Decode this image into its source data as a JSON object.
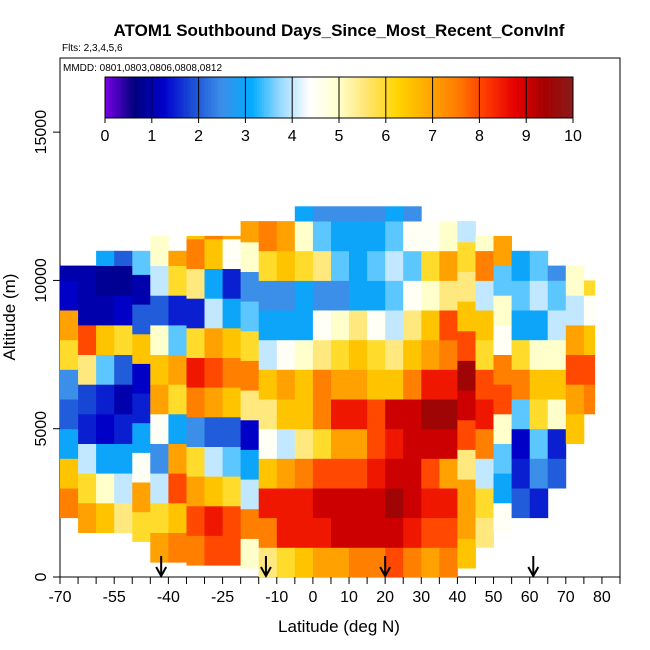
{
  "chart_data": {
    "type": "heatmap",
    "title": "ATOM1 Southbound Days_Since_Most_Recent_ConvInf",
    "flights_label": "Flts: 2,3,4,5,6",
    "dates_label": "MMDD: 0801,0803,0806,0808,0812",
    "xlabel": "Latitude (deg N)",
    "ylabel": "Altitude (m)",
    "xlim": [
      -70,
      85
    ],
    "ylim": [
      0,
      17500
    ],
    "x_ticks": [
      -70,
      -55,
      -40,
      -25,
      -10,
      0,
      10,
      20,
      30,
      40,
      50,
      60,
      70,
      80
    ],
    "y_ticks": [
      0,
      5000,
      10000,
      15000
    ],
    "colorbar": {
      "min": 0,
      "max": 10,
      "ticks": [
        0,
        1,
        2,
        3,
        4,
        5,
        6,
        7,
        8,
        9,
        10
      ],
      "colors": [
        "#7a00e6",
        "#00007d",
        "#0000cc",
        "#1a4fd6",
        "#3b8fe8",
        "#00aaff",
        "#99d9ff",
        "#ffffff",
        "#ffffcc",
        "#ffe36b",
        "#ffd500",
        "#ffaa00",
        "#ff7f00",
        "#ff3a00",
        "#e60000",
        "#a50000",
        "#8b1a1a"
      ]
    },
    "arrows_lat": [
      -42,
      -13,
      20,
      61
    ],
    "profile_columns": [
      {
        "x0": -70,
        "x1": -65,
        "alt_min": 2000,
        "alt_max": 10500,
        "values": [
          7.5,
          6.5,
          3.0,
          2.0,
          2.5,
          6.0,
          7.0,
          1.2,
          1.0,
          4.5,
          7.5
        ]
      },
      {
        "x0": -65,
        "x1": -60,
        "alt_min": 1500,
        "alt_max": 10500,
        "values": [
          7.0,
          6.0,
          4.0,
          1.5,
          1.8,
          5.5,
          8.0,
          1.0,
          1.0,
          2.5,
          4.0
        ]
      },
      {
        "x0": -60,
        "x1": -55,
        "alt_min": 1500,
        "alt_max": 11000,
        "values": [
          6.5,
          5.0,
          3.0,
          1.2,
          1.5,
          3.5,
          6.5,
          1.0,
          0.8,
          3.0,
          6.0,
          8.0
        ]
      },
      {
        "x0": -55,
        "x1": -50,
        "alt_min": 1500,
        "alt_max": 11000,
        "values": [
          5.5,
          4.0,
          3.0,
          1.5,
          1.0,
          2.0,
          6.0,
          1.2,
          0.8,
          2.0,
          5.0,
          7.5
        ]
      },
      {
        "x0": -50,
        "x1": -45,
        "alt_min": 1200,
        "alt_max": 11000,
        "values": [
          6.0,
          7.0,
          4.5,
          3.0,
          1.5,
          1.2,
          6.5,
          2.0,
          1.0,
          3.5,
          5.5,
          8.0
        ]
      },
      {
        "x0": -45,
        "x1": -40,
        "alt_min": 500,
        "alt_max": 11500,
        "values": [
          7.0,
          6.0,
          4.0,
          2.5,
          4.5,
          7.0,
          6.5,
          5.0,
          2.0,
          4.0,
          5.0,
          7.5
        ]
      },
      {
        "x0": -40,
        "x1": -35,
        "alt_min": 500,
        "alt_max": 11000,
        "values": [
          7.5,
          6.5,
          8.0,
          7.0,
          3.0,
          6.0,
          7.0,
          3.5,
          1.5,
          6.0,
          7.0
        ]
      },
      {
        "x0": -35,
        "x1": -30,
        "alt_min": 400,
        "alt_max": 11500,
        "values": [
          7.5,
          8.0,
          7.0,
          6.0,
          2.5,
          7.5,
          8.5,
          6.0,
          1.5,
          5.5,
          7.5,
          6.5
        ]
      },
      {
        "x0": -30,
        "x1": -25,
        "alt_min": 400,
        "alt_max": 11500,
        "values": [
          8.0,
          8.5,
          6.5,
          4.0,
          2.0,
          7.0,
          8.0,
          7.0,
          4.0,
          3.0,
          6.5,
          7.5
        ]
      },
      {
        "x0": -25,
        "x1": -20,
        "alt_min": 400,
        "alt_max": 11500,
        "values": [
          8.0,
          8.0,
          6.0,
          3.5,
          2.0,
          6.5,
          7.5,
          6.5,
          3.0,
          1.5,
          4.5,
          7.0
        ]
      },
      {
        "x0": -20,
        "x1": -15,
        "alt_min": 300,
        "alt_max": 12000,
        "values": [
          5.0,
          7.5,
          4.0,
          3.0,
          1.2,
          5.5,
          7.5,
          6.0,
          3.5,
          2.5,
          5.0,
          7.0,
          3.5
        ]
      },
      {
        "x0": -15,
        "x1": -10,
        "alt_min": 0,
        "alt_max": 12000,
        "values": [
          5.5,
          7.5,
          8.5,
          6.5,
          4.5,
          5.5,
          6.5,
          4.0,
          3.0,
          2.5,
          6.0,
          7.5,
          4.0
        ]
      },
      {
        "x0": -10,
        "x1": -5,
        "alt_min": 0,
        "alt_max": 12000,
        "values": [
          6.0,
          8.5,
          8.5,
          7.0,
          4.0,
          6.5,
          7.0,
          4.5,
          3.0,
          2.5,
          6.5,
          7.0,
          4.0
        ]
      },
      {
        "x0": -5,
        "x1": 0,
        "alt_min": 0,
        "alt_max": 12500,
        "values": [
          6.5,
          8.5,
          8.5,
          7.5,
          5.5,
          6.5,
          6.5,
          5.0,
          3.0,
          3.0,
          6.0,
          5.0,
          3.0
        ]
      },
      {
        "x0": 0,
        "x1": 5,
        "alt_min": 0,
        "alt_max": 12500,
        "values": [
          7.0,
          8.5,
          9.0,
          8.0,
          6.0,
          7.5,
          7.5,
          5.5,
          4.5,
          2.5,
          5.5,
          3.5,
          2.5
        ]
      },
      {
        "x0": 5,
        "x1": 10,
        "alt_min": 0,
        "alt_max": 12500,
        "values": [
          7.0,
          9.0,
          9.0,
          8.0,
          7.0,
          8.5,
          7.0,
          6.0,
          5.0,
          2.5,
          3.5,
          3.0,
          2.5
        ]
      },
      {
        "x0": 10,
        "x1": 15,
        "alt_min": 0,
        "alt_max": 12500,
        "values": [
          7.5,
          9.0,
          9.0,
          8.0,
          7.0,
          8.5,
          7.0,
          6.5,
          5.5,
          3.0,
          3.0,
          3.0,
          2.5
        ]
      },
      {
        "x0": 15,
        "x1": 20,
        "alt_min": 0,
        "alt_max": 12500,
        "values": [
          7.5,
          9.0,
          9.0,
          8.5,
          8.0,
          8.0,
          6.5,
          6.0,
          4.5,
          3.0,
          3.5,
          3.0,
          2.5
        ]
      },
      {
        "x0": 20,
        "x1": 25,
        "alt_min": 0,
        "alt_max": 12500,
        "values": [
          8.0,
          9.0,
          9.5,
          9.0,
          8.5,
          9.0,
          6.5,
          5.5,
          4.0,
          3.5,
          4.0,
          3.5,
          3.0
        ]
      },
      {
        "x0": 25,
        "x1": 30,
        "alt_min": 0,
        "alt_max": 12500,
        "values": [
          7.5,
          8.5,
          9.0,
          9.0,
          9.0,
          9.0,
          7.5,
          6.5,
          5.5,
          4.5,
          3.5,
          4.5,
          2.5,
          3.0
        ]
      },
      {
        "x0": 30,
        "x1": 35,
        "alt_min": 0,
        "alt_max": 12000,
        "values": [
          7.0,
          8.0,
          8.5,
          8.0,
          9.0,
          9.5,
          8.5,
          7.0,
          6.5,
          5.0,
          6.0,
          4.5,
          3.0
        ]
      },
      {
        "x0": 35,
        "x1": 40,
        "alt_min": 0,
        "alt_max": 12000,
        "values": [
          7.5,
          8.0,
          8.5,
          7.0,
          9.0,
          9.5,
          8.5,
          7.5,
          8.0,
          5.5,
          7.0,
          5.0,
          4.5
        ]
      },
      {
        "x0": 40,
        "x1": 45,
        "alt_min": 300,
        "alt_max": 12000,
        "values": [
          6.5,
          7.0,
          7.0,
          5.5,
          8.0,
          9.0,
          9.5,
          8.0,
          6.5,
          5.5,
          6.0,
          4.0,
          5.0
        ]
      },
      {
        "x0": 45,
        "x1": 50,
        "alt_min": 1000,
        "alt_max": 11500,
        "values": [
          5.5,
          6.0,
          4.0,
          7.5,
          8.5,
          8.0,
          6.0,
          6.5,
          4.0,
          7.5,
          5.0,
          4.5
        ]
      },
      {
        "x0": 50,
        "x1": 55,
        "alt_min": 1500,
        "alt_max": 11500,
        "values": [
          4.5,
          3.0,
          3.5,
          5.0,
          8.0,
          7.5,
          4.5,
          5.0,
          3.5,
          7.0,
          5.5,
          4.0
        ]
      },
      {
        "x0": 55,
        "x1": 60,
        "alt_min": 2000,
        "alt_max": 11000,
        "values": [
          2.0,
          1.5,
          1.2,
          3.5,
          7.5,
          6.0,
          3.0,
          3.5,
          3.0,
          2.5,
          6.5
        ]
      },
      {
        "x0": 60,
        "x1": 65,
        "alt_min": 2000,
        "alt_max": 11000,
        "values": [
          1.5,
          2.5,
          3.5,
          6.0,
          6.5,
          5.0,
          3.0,
          4.0,
          3.5,
          2.0,
          5.5
        ]
      },
      {
        "x0": 65,
        "x1": 70,
        "alt_min": 3000,
        "alt_max": 10500,
        "values": [
          2.0,
          1.5,
          5.0,
          6.5,
          5.0,
          4.0,
          3.5,
          2.5
        ]
      },
      {
        "x0": 70,
        "x1": 75,
        "alt_min": 4500,
        "alt_max": 10500,
        "values": [
          6.5,
          7.0,
          8.0,
          7.0,
          4.0,
          5.0,
          3.0
        ]
      },
      {
        "x0": 75,
        "x1": 78,
        "alt_min": 5500,
        "alt_max": 10000,
        "values": [
          7.5,
          8.0,
          6.5,
          4.5,
          6.0
        ]
      }
    ]
  }
}
